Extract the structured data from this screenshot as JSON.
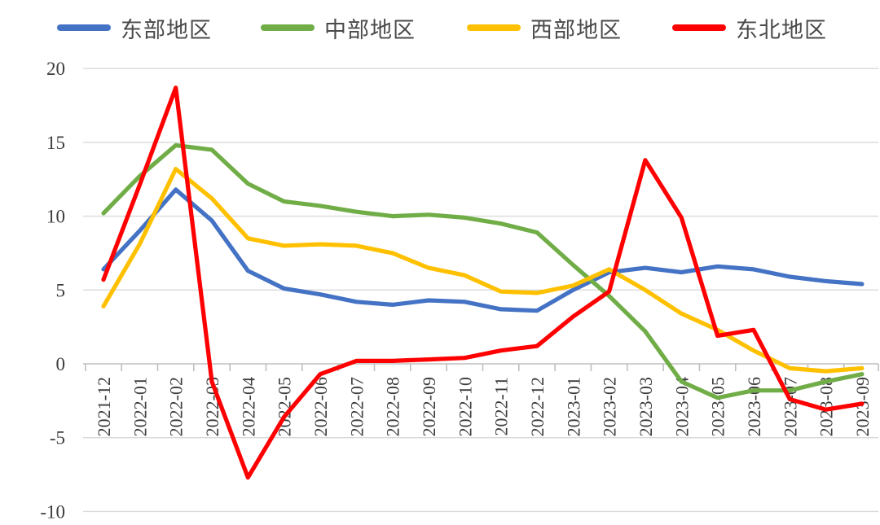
{
  "chart_data": {
    "type": "line",
    "title": "",
    "xlabel": "",
    "ylabel": "",
    "categories": [
      "2021-12",
      "2022-01",
      "2022-02",
      "2022-03",
      "2022-04",
      "2022-05",
      "2022-06",
      "2022-07",
      "2022-08",
      "2022-09",
      "2022-10",
      "2022-11",
      "2022-12",
      "2023-01",
      "2023-02",
      "2023-03",
      "2023-04",
      "2023-05",
      "2023-06",
      "2023-07",
      "2023-08",
      "2023-09"
    ],
    "series": [
      {
        "name": "东部地区",
        "color": "#4472C4",
        "values": [
          6.4,
          9.0,
          11.8,
          9.7,
          6.3,
          5.1,
          4.7,
          4.2,
          4.0,
          4.3,
          4.2,
          3.7,
          3.6,
          5.0,
          6.2,
          6.5,
          6.2,
          6.6,
          6.4,
          5.9,
          5.6,
          5.4
        ]
      },
      {
        "name": "中部地区",
        "color": "#70AD47",
        "values": [
          10.2,
          12.7,
          14.8,
          14.5,
          12.2,
          11.0,
          10.7,
          10.3,
          10.0,
          10.1,
          9.9,
          9.5,
          8.9,
          6.7,
          4.6,
          2.2,
          -1.2,
          -2.3,
          -1.8,
          -1.8,
          -1.2,
          -0.7
        ]
      },
      {
        "name": "西部地区",
        "color": "#FFC000",
        "values": [
          3.9,
          8.1,
          13.2,
          11.2,
          8.5,
          8.0,
          8.1,
          8.0,
          7.5,
          6.5,
          6.0,
          4.9,
          4.8,
          5.3,
          6.4,
          5.0,
          3.4,
          2.3,
          0.9,
          -0.3,
          -0.5,
          -0.3
        ]
      },
      {
        "name": "东北地区",
        "color": "#FF0000",
        "values": [
          5.7,
          12.1,
          18.7,
          -1.2,
          -7.7,
          -3.6,
          -0.7,
          0.2,
          0.2,
          0.3,
          0.4,
          0.9,
          1.2,
          3.2,
          4.9,
          13.8,
          9.9,
          1.9,
          2.3,
          -2.4,
          -3.1,
          -2.7
        ]
      }
    ],
    "y_ticks": [
      20,
      15,
      10,
      5,
      0,
      -5,
      -10
    ],
    "ylim": [
      -10,
      20
    ],
    "grid": "horizontal",
    "gridline_color": "#D9D9D9",
    "axis_color": "#BFBFBF",
    "tick_label_color": "#3d3d3d",
    "legend_position": "top",
    "x_label_rotation": -90
  }
}
